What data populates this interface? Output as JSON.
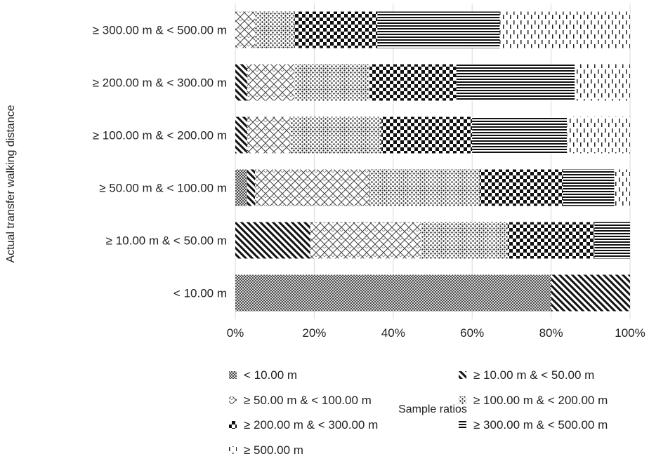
{
  "chart_data": {
    "type": "bar",
    "orientation": "horizontal",
    "stacked": "percent",
    "xlabel": "Sample ratios",
    "ylabel": "Actual transfer walking distance",
    "xlim": [
      0,
      100
    ],
    "x_ticks": [
      "0%",
      "20%",
      "40%",
      "60%",
      "80%",
      "100%"
    ],
    "grid": "vertical",
    "legend_position": "bottom",
    "categories": [
      "< 10.00 m",
      "≥ 10.00 m & < 50.00 m",
      "≥ 50.00 m & < 100.00 m",
      "≥ 100.00 m & < 200.00 m",
      "≥ 200.00 m & < 300.00 m",
      "≥ 300.00 m & < 500.00 m"
    ],
    "series": [
      {
        "name": "< 10.00 m",
        "pattern": "fine-crosshatch",
        "values": [
          80,
          0,
          3,
          0,
          0,
          0
        ]
      },
      {
        "name": "≥ 10.00 m & < 50.00 m",
        "pattern": "diagonal-stripes",
        "values": [
          20,
          19,
          2,
          3,
          3,
          0
        ]
      },
      {
        "name": "≥ 50.00 m & < 100.00 m",
        "pattern": "diamond-lattice",
        "values": [
          0,
          28,
          29,
          11,
          12,
          5
        ]
      },
      {
        "name": "≥ 100.00 m & < 200.00 m",
        "pattern": "dots",
        "values": [
          0,
          22,
          28,
          23,
          19,
          10
        ]
      },
      {
        "name": "≥ 200.00 m & < 300.00 m",
        "pattern": "checkerboard",
        "values": [
          0,
          22,
          21,
          23,
          22,
          21
        ]
      },
      {
        "name": "≥ 300.00 m & < 500.00 m",
        "pattern": "horizontal-lines",
        "values": [
          0,
          9,
          13,
          24,
          30,
          31
        ]
      },
      {
        "name": "≥ 500.00 m",
        "pattern": "dashed-vertical",
        "values": [
          0,
          0,
          4,
          16,
          14,
          33
        ]
      }
    ]
  }
}
